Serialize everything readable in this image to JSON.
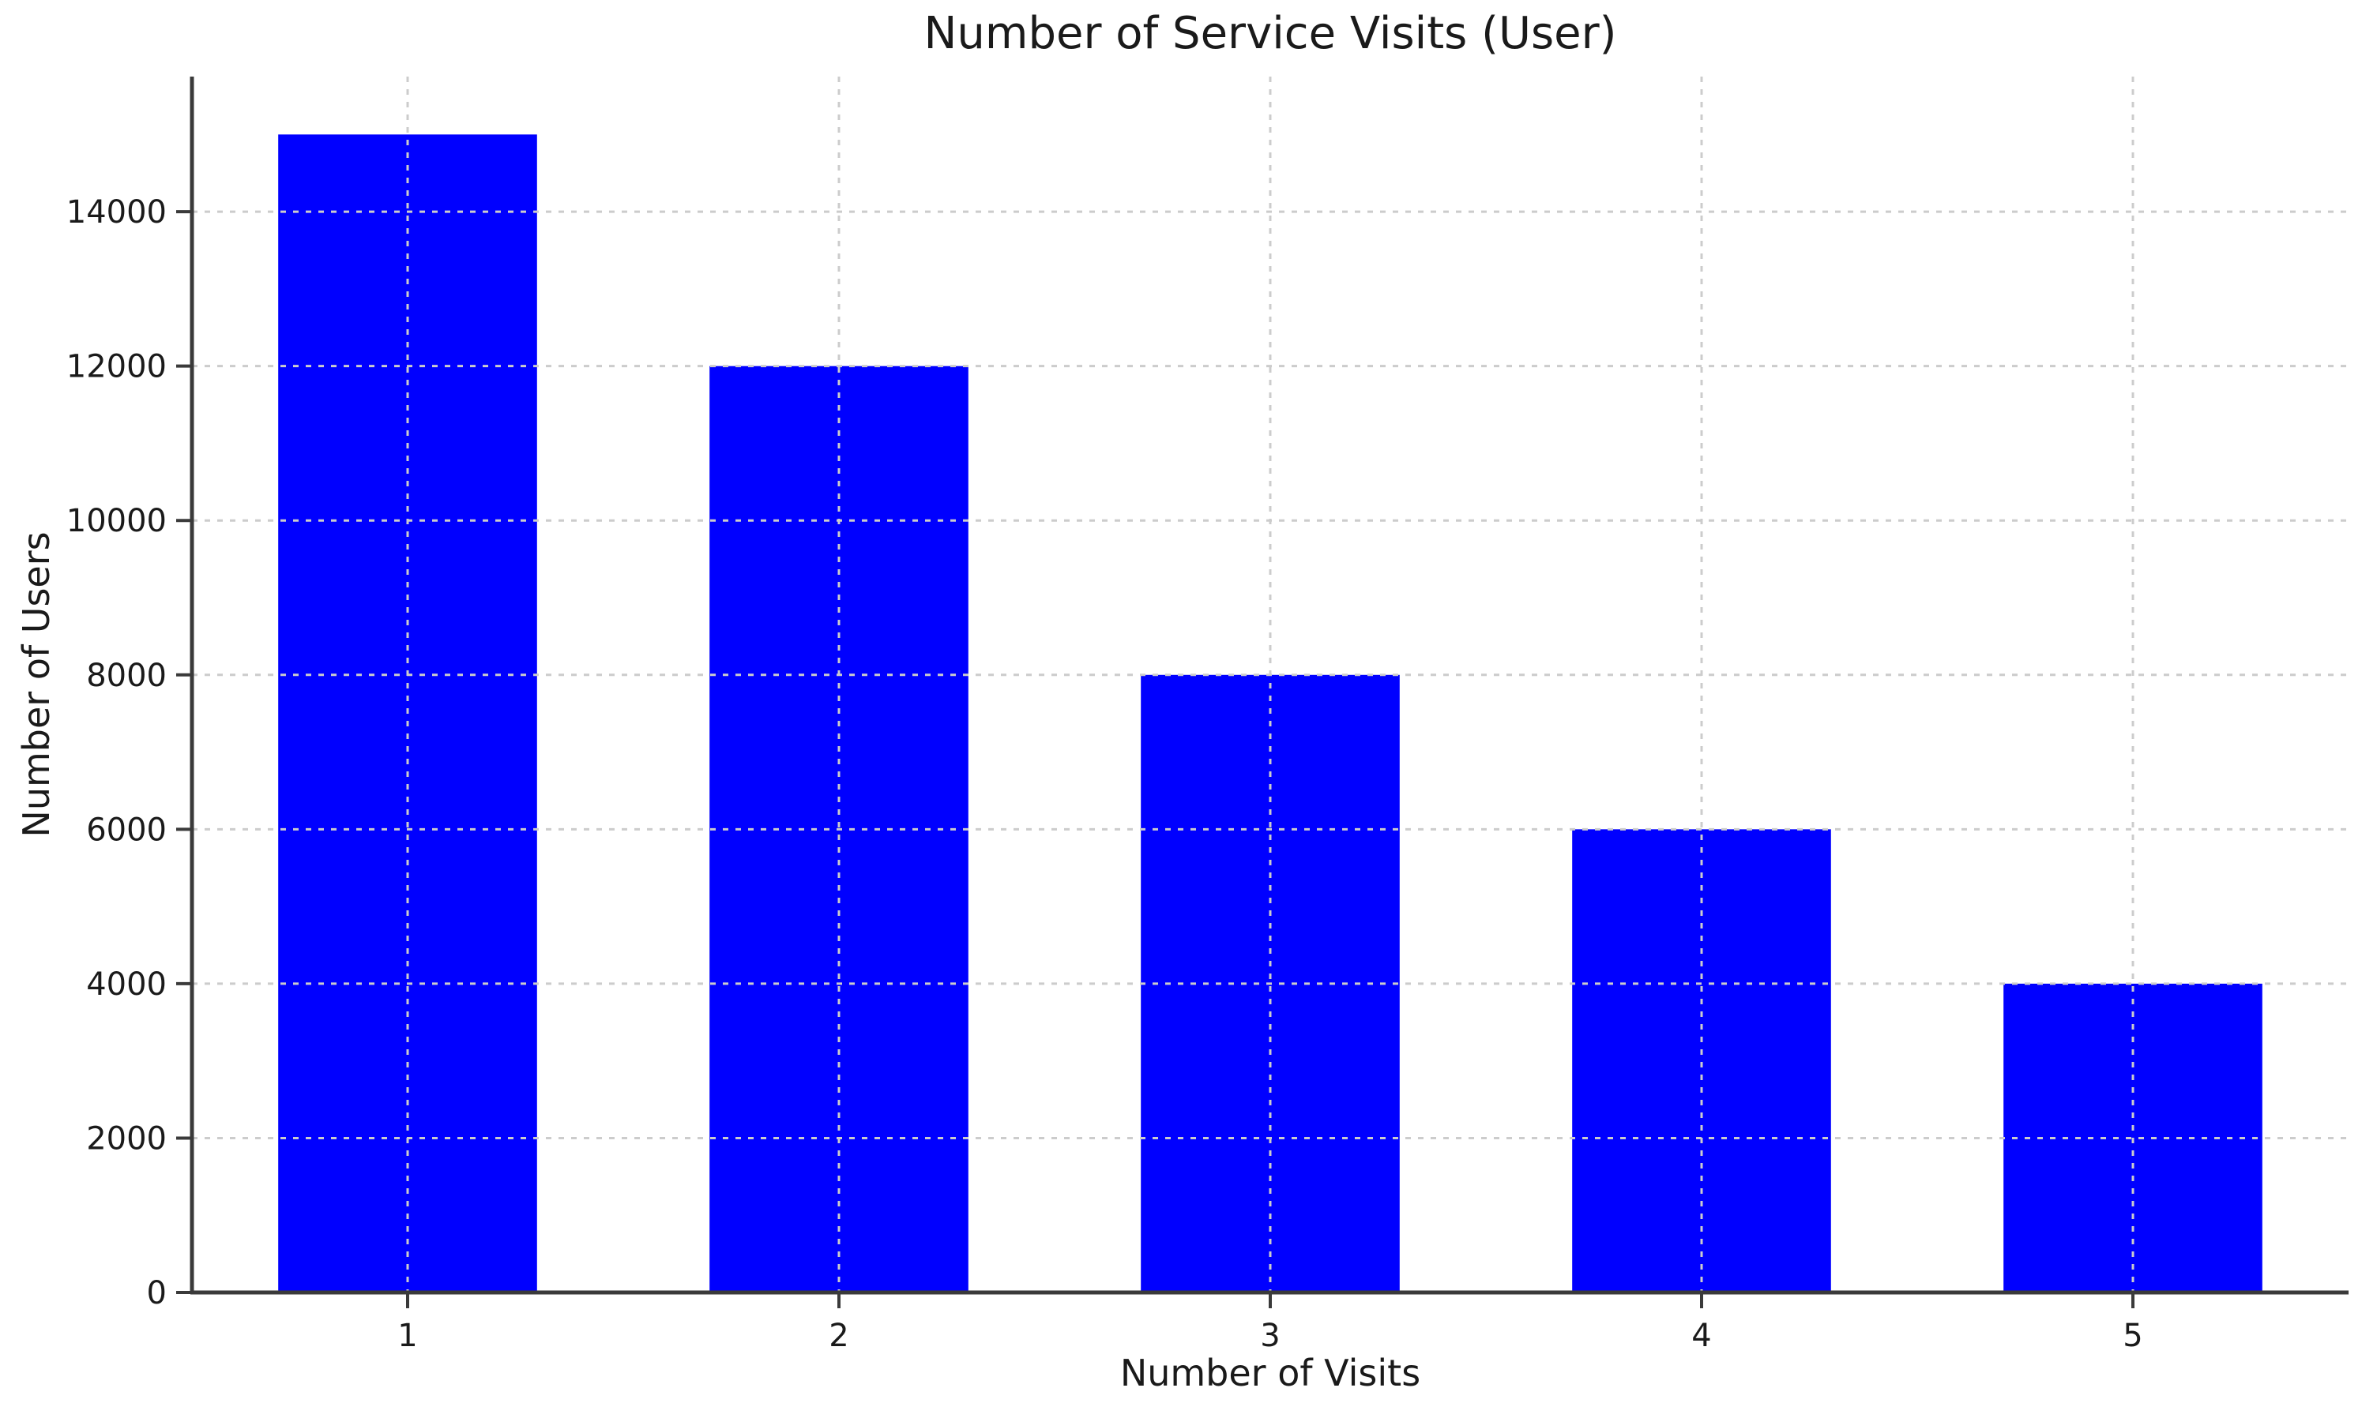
{
  "page": {
    "background": "#ffffff"
  },
  "chart_data": {
    "type": "bar",
    "title": "Number of Service Visits (User)",
    "xlabel": "Number of Visits",
    "ylabel": "Number of Users",
    "categories": [
      "1",
      "2",
      "3",
      "4",
      "5"
    ],
    "values": [
      15000,
      12000,
      8000,
      6000,
      4000
    ],
    "series": [
      {
        "name": "Users",
        "values": [
          15000,
          12000,
          8000,
          6000,
          4000
        ]
      }
    ],
    "yticks": [
      0,
      2000,
      4000,
      6000,
      8000,
      10000,
      12000,
      14000
    ],
    "ylim": [
      0,
      15750
    ],
    "xlim_categories": [
      -0.5,
      4.5
    ],
    "bar_width_fraction": 0.6,
    "grid": {
      "show": true,
      "style": "dashed",
      "axes": "both",
      "on_top_of_bars": true
    },
    "legend": {
      "show": false,
      "position": "none"
    },
    "spines": {
      "left": true,
      "bottom": true,
      "top": false,
      "right": false
    },
    "colors": {
      "bar": "#0000ff",
      "grid": "#cccccc",
      "spine": "#3a3a3a",
      "tick": "#3a3a3a",
      "text": "#1a1a1a",
      "background": "#ffffff"
    }
  }
}
